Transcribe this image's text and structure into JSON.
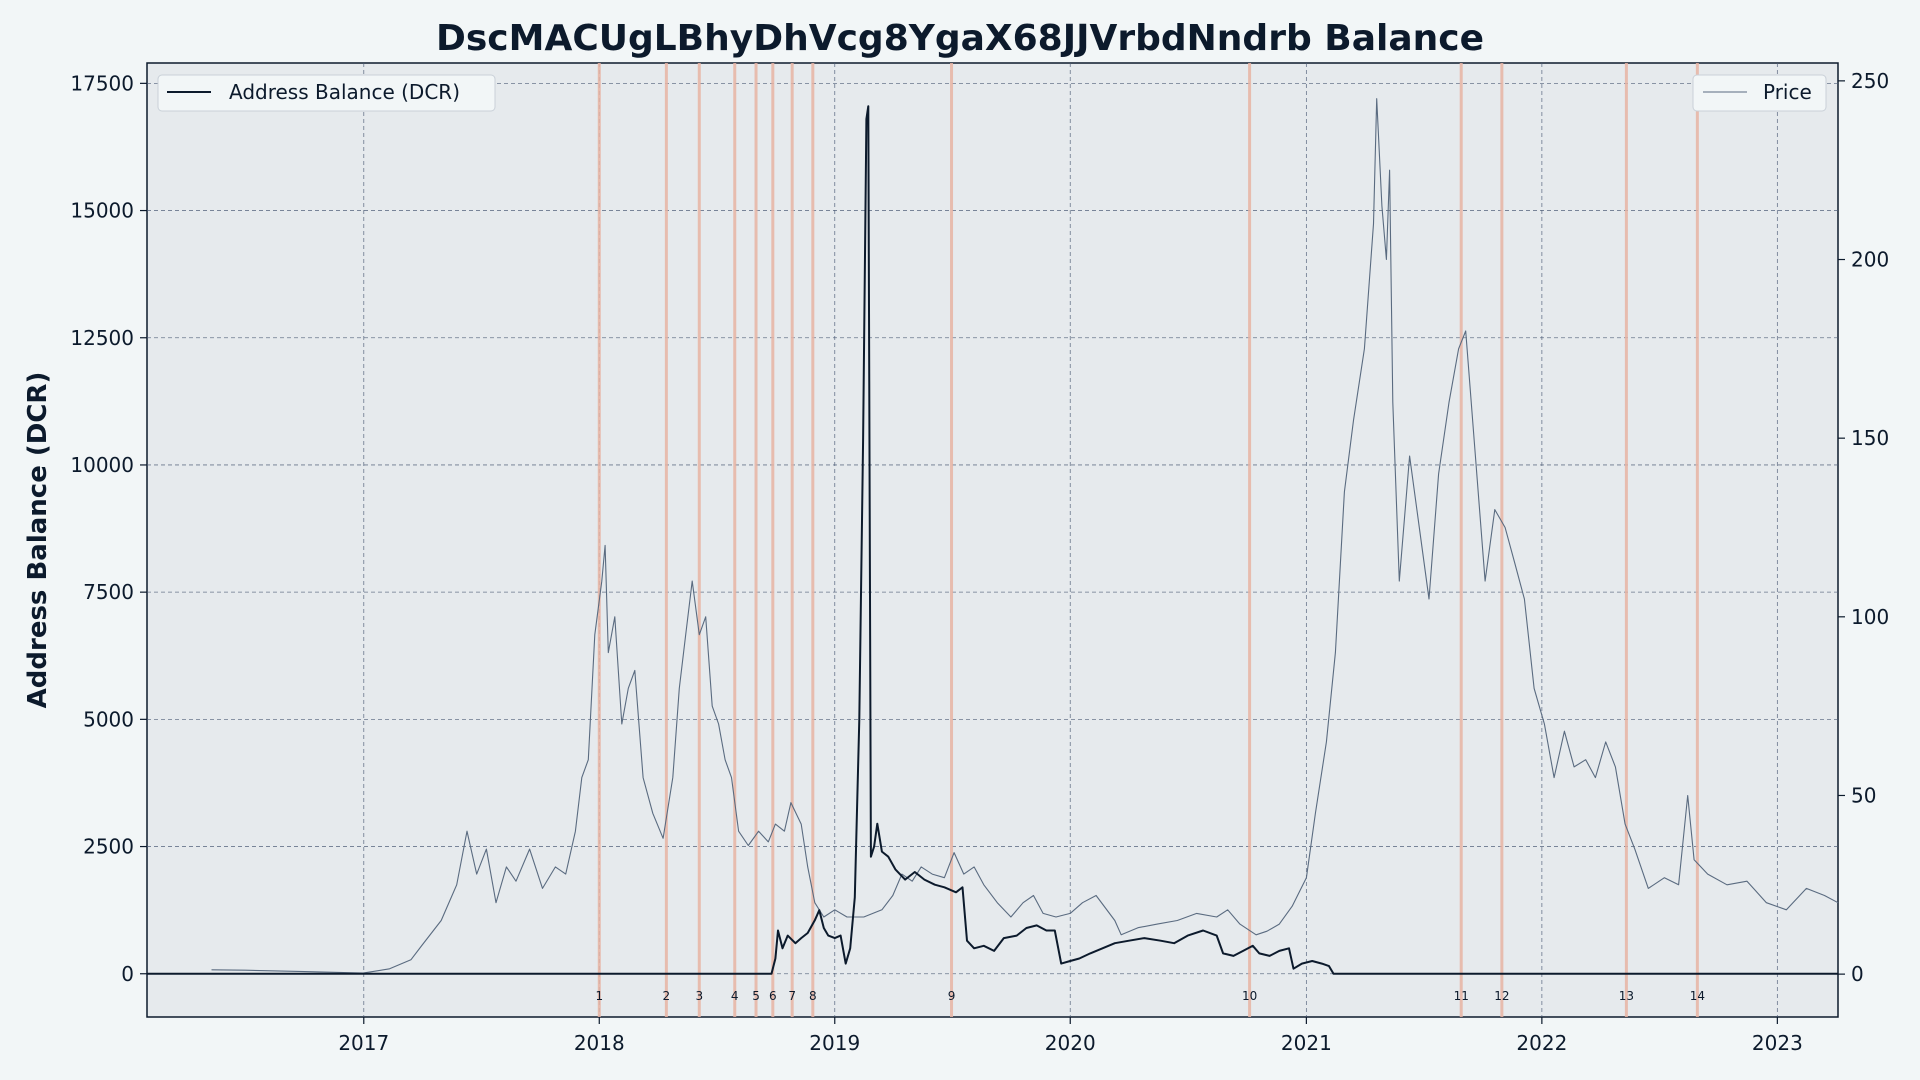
{
  "chart_data": {
    "type": "line",
    "title": "DscMACUgLBhyDhVcg8YgaX68JJVrbdNndrb Balance",
    "ylabel": "Address Balance (DCR)",
    "y2label": "",
    "xlabel": "",
    "xlim": [
      "2016-01-31",
      "2023-04-05"
    ],
    "ylim": [
      -850,
      17900
    ],
    "y2lim": [
      -12,
      255
    ],
    "x_ticks": [
      "2017",
      "2018",
      "2019",
      "2020",
      "2021",
      "2022",
      "2023"
    ],
    "y_ticks": [
      0,
      2500,
      5000,
      7500,
      10000,
      12500,
      15000,
      17500
    ],
    "y_tick_labels": [
      "0",
      "2500",
      "5000",
      "7500",
      "10000",
      "12500",
      "15000",
      "17500"
    ],
    "y2_ticks": [
      0,
      50,
      100,
      150,
      200,
      250
    ],
    "y2_tick_labels": [
      "0",
      "50",
      "100",
      "150",
      "200",
      "250"
    ],
    "grid": true,
    "legend": [
      {
        "label": "Address Balance (DCR)",
        "placement": "top-left"
      },
      {
        "label": "Price",
        "placement": "top-right"
      }
    ],
    "colors": {
      "balance": "#0c1a2c",
      "price": "#5a6b80",
      "marker": "#e8b4a4",
      "plot_bg": "#e6eaed",
      "grid": "#4a5a75"
    },
    "markers": [
      {
        "label": "1",
        "date": "2018-01-01"
      },
      {
        "label": "2",
        "date": "2018-04-15"
      },
      {
        "label": "3",
        "date": "2018-06-05"
      },
      {
        "label": "4",
        "date": "2018-07-30"
      },
      {
        "label": "5",
        "date": "2018-09-01"
      },
      {
        "label": "6",
        "date": "2018-09-27"
      },
      {
        "label": "7",
        "date": "2018-10-27"
      },
      {
        "label": "8",
        "date": "2018-11-28"
      },
      {
        "label": "9",
        "date": "2019-07-01"
      },
      {
        "label": "10",
        "date": "2020-10-05"
      },
      {
        "label": "11",
        "date": "2021-08-29"
      },
      {
        "label": "12",
        "date": "2021-10-31"
      },
      {
        "label": "13",
        "date": "2022-05-12"
      },
      {
        "label": "14",
        "date": "2022-08-30"
      }
    ],
    "series": [
      {
        "name": "Address Balance (DCR)",
        "axis": "left",
        "points": [
          [
            "2016-01-31",
            0
          ],
          [
            "2018-09-25",
            0
          ],
          [
            "2018-10-01",
            300
          ],
          [
            "2018-10-05",
            850
          ],
          [
            "2018-10-12",
            500
          ],
          [
            "2018-10-20",
            750
          ],
          [
            "2018-11-01",
            600
          ],
          [
            "2018-11-10",
            700
          ],
          [
            "2018-11-20",
            800
          ],
          [
            "2018-12-01",
            1050
          ],
          [
            "2018-12-08",
            1250
          ],
          [
            "2018-12-15",
            900
          ],
          [
            "2018-12-22",
            750
          ],
          [
            "2019-01-01",
            700
          ],
          [
            "2019-01-10",
            750
          ],
          [
            "2019-01-18",
            200
          ],
          [
            "2019-01-25",
            500
          ],
          [
            "2019-02-01",
            1500
          ],
          [
            "2019-02-08",
            5000
          ],
          [
            "2019-02-14",
            10500
          ],
          [
            "2019-02-19",
            16800
          ],
          [
            "2019-02-22",
            17050
          ],
          [
            "2019-02-26",
            2300
          ],
          [
            "2019-03-03",
            2500
          ],
          [
            "2019-03-08",
            2950
          ],
          [
            "2019-03-15",
            2400
          ],
          [
            "2019-03-25",
            2300
          ],
          [
            "2019-04-05",
            2050
          ],
          [
            "2019-04-20",
            1850
          ],
          [
            "2019-05-05",
            2000
          ],
          [
            "2019-05-20",
            1850
          ],
          [
            "2019-06-05",
            1750
          ],
          [
            "2019-06-20",
            1700
          ],
          [
            "2019-07-08",
            1600
          ],
          [
            "2019-07-18",
            1700
          ],
          [
            "2019-07-25",
            650
          ],
          [
            "2019-08-05",
            500
          ],
          [
            "2019-08-20",
            550
          ],
          [
            "2019-09-05",
            450
          ],
          [
            "2019-09-20",
            700
          ],
          [
            "2019-10-10",
            750
          ],
          [
            "2019-10-25",
            900
          ],
          [
            "2019-11-10",
            950
          ],
          [
            "2019-11-25",
            850
          ],
          [
            "2019-12-08",
            850
          ],
          [
            "2019-12-18",
            200
          ],
          [
            "2020-01-01",
            250
          ],
          [
            "2020-01-15",
            300
          ],
          [
            "2020-02-01",
            400
          ],
          [
            "2020-02-20",
            500
          ],
          [
            "2020-03-10",
            600
          ],
          [
            "2020-04-01",
            650
          ],
          [
            "2020-04-25",
            700
          ],
          [
            "2020-05-20",
            650
          ],
          [
            "2020-06-10",
            600
          ],
          [
            "2020-07-01",
            750
          ],
          [
            "2020-07-25",
            850
          ],
          [
            "2020-08-15",
            750
          ],
          [
            "2020-08-25",
            400
          ],
          [
            "2020-09-10",
            350
          ],
          [
            "2020-09-25",
            450
          ],
          [
            "2020-10-10",
            550
          ],
          [
            "2020-10-20",
            400
          ],
          [
            "2020-11-05",
            350
          ],
          [
            "2020-11-20",
            450
          ],
          [
            "2020-12-05",
            500
          ],
          [
            "2020-12-12",
            100
          ],
          [
            "2020-12-25",
            200
          ],
          [
            "2021-01-10",
            250
          ],
          [
            "2021-01-25",
            200
          ],
          [
            "2021-02-05",
            150
          ],
          [
            "2021-02-12",
            0
          ],
          [
            "2023-04-05",
            0
          ]
        ]
      },
      {
        "name": "Price",
        "axis": "right",
        "points": [
          [
            "2016-05-10",
            1.2
          ],
          [
            "2016-07-01",
            1.1
          ],
          [
            "2016-10-01",
            0.7
          ],
          [
            "2016-12-31",
            0.3
          ],
          [
            "2017-02-10",
            1.5
          ],
          [
            "2017-03-15",
            4
          ],
          [
            "2017-04-01",
            8
          ],
          [
            "2017-05-01",
            15
          ],
          [
            "2017-05-25",
            25
          ],
          [
            "2017-06-10",
            40
          ],
          [
            "2017-06-25",
            28
          ],
          [
            "2017-07-10",
            35
          ],
          [
            "2017-07-25",
            20
          ],
          [
            "2017-08-10",
            30
          ],
          [
            "2017-08-25",
            26
          ],
          [
            "2017-09-15",
            35
          ],
          [
            "2017-10-05",
            24
          ],
          [
            "2017-10-25",
            30
          ],
          [
            "2017-11-10",
            28
          ],
          [
            "2017-11-25",
            40
          ],
          [
            "2017-12-05",
            55
          ],
          [
            "2017-12-15",
            60
          ],
          [
            "2017-12-25",
            95
          ],
          [
            "2018-01-05",
            110
          ],
          [
            "2018-01-10",
            120
          ],
          [
            "2018-01-15",
            90
          ],
          [
            "2018-01-25",
            100
          ],
          [
            "2018-02-05",
            70
          ],
          [
            "2018-02-15",
            80
          ],
          [
            "2018-02-25",
            85
          ],
          [
            "2018-03-10",
            55
          ],
          [
            "2018-03-25",
            45
          ],
          [
            "2018-04-10",
            38
          ],
          [
            "2018-04-25",
            55
          ],
          [
            "2018-05-05",
            80
          ],
          [
            "2018-05-15",
            95
          ],
          [
            "2018-05-25",
            110
          ],
          [
            "2018-06-05",
            95
          ],
          [
            "2018-06-15",
            100
          ],
          [
            "2018-06-25",
            75
          ],
          [
            "2018-07-05",
            70
          ],
          [
            "2018-07-15",
            60
          ],
          [
            "2018-07-25",
            55
          ],
          [
            "2018-08-05",
            40
          ],
          [
            "2018-08-20",
            36
          ],
          [
            "2018-09-05",
            40
          ],
          [
            "2018-09-20",
            37
          ],
          [
            "2018-10-01",
            42
          ],
          [
            "2018-10-15",
            40
          ],
          [
            "2018-10-25",
            48
          ],
          [
            "2018-11-10",
            42
          ],
          [
            "2018-11-20",
            30
          ],
          [
            "2018-12-01",
            20
          ],
          [
            "2018-12-15",
            16
          ],
          [
            "2019-01-01",
            18
          ],
          [
            "2019-01-20",
            16
          ],
          [
            "2019-02-15",
            16
          ],
          [
            "2019-03-15",
            18
          ],
          [
            "2019-04-01",
            22
          ],
          [
            "2019-04-15",
            28
          ],
          [
            "2019-05-01",
            26
          ],
          [
            "2019-05-15",
            30
          ],
          [
            "2019-06-01",
            28
          ],
          [
            "2019-06-20",
            27
          ],
          [
            "2019-07-05",
            34
          ],
          [
            "2019-07-20",
            28
          ],
          [
            "2019-08-05",
            30
          ],
          [
            "2019-08-20",
            25
          ],
          [
            "2019-09-10",
            20
          ],
          [
            "2019-10-01",
            16
          ],
          [
            "2019-10-20",
            20
          ],
          [
            "2019-11-05",
            22
          ],
          [
            "2019-11-20",
            17
          ],
          [
            "2019-12-10",
            16
          ],
          [
            "2020-01-01",
            17
          ],
          [
            "2020-01-20",
            20
          ],
          [
            "2020-02-10",
            22
          ],
          [
            "2020-03-10",
            15
          ],
          [
            "2020-03-20",
            11
          ],
          [
            "2020-04-15",
            13
          ],
          [
            "2020-05-15",
            14
          ],
          [
            "2020-06-15",
            15
          ],
          [
            "2020-07-15",
            17
          ],
          [
            "2020-08-15",
            16
          ],
          [
            "2020-09-01",
            18
          ],
          [
            "2020-09-20",
            14
          ],
          [
            "2020-10-15",
            11
          ],
          [
            "2020-11-01",
            12
          ],
          [
            "2020-11-20",
            14
          ],
          [
            "2020-12-10",
            19
          ],
          [
            "2021-01-01",
            27
          ],
          [
            "2021-01-15",
            45
          ],
          [
            "2021-02-01",
            65
          ],
          [
            "2021-02-15",
            90
          ],
          [
            "2021-03-01",
            135
          ],
          [
            "2021-03-15",
            155
          ],
          [
            "2021-04-01",
            175
          ],
          [
            "2021-04-15",
            210
          ],
          [
            "2021-04-20",
            245
          ],
          [
            "2021-04-28",
            215
          ],
          [
            "2021-05-05",
            200
          ],
          [
            "2021-05-10",
            225
          ],
          [
            "2021-05-15",
            160
          ],
          [
            "2021-05-25",
            110
          ],
          [
            "2021-06-10",
            145
          ],
          [
            "2021-06-25",
            125
          ],
          [
            "2021-07-10",
            105
          ],
          [
            "2021-07-25",
            140
          ],
          [
            "2021-08-10",
            160
          ],
          [
            "2021-08-25",
            175
          ],
          [
            "2021-09-05",
            180
          ],
          [
            "2021-09-20",
            145
          ],
          [
            "2021-10-05",
            110
          ],
          [
            "2021-10-20",
            130
          ],
          [
            "2021-11-05",
            125
          ],
          [
            "2021-11-20",
            115
          ],
          [
            "2021-12-05",
            105
          ],
          [
            "2021-12-20",
            80
          ],
          [
            "2022-01-05",
            70
          ],
          [
            "2022-01-20",
            55
          ],
          [
            "2022-02-05",
            68
          ],
          [
            "2022-02-20",
            58
          ],
          [
            "2022-03-10",
            60
          ],
          [
            "2022-03-25",
            55
          ],
          [
            "2022-04-10",
            65
          ],
          [
            "2022-04-25",
            58
          ],
          [
            "2022-05-10",
            42
          ],
          [
            "2022-05-25",
            35
          ],
          [
            "2022-06-15",
            24
          ],
          [
            "2022-07-10",
            27
          ],
          [
            "2022-08-01",
            25
          ],
          [
            "2022-08-15",
            50
          ],
          [
            "2022-08-25",
            32
          ],
          [
            "2022-09-15",
            28
          ],
          [
            "2022-10-15",
            25
          ],
          [
            "2022-11-15",
            26
          ],
          [
            "2022-12-15",
            20
          ],
          [
            "2023-01-15",
            18
          ],
          [
            "2023-02-15",
            24
          ],
          [
            "2023-03-15",
            22
          ],
          [
            "2023-04-05",
            20
          ]
        ]
      }
    ]
  }
}
